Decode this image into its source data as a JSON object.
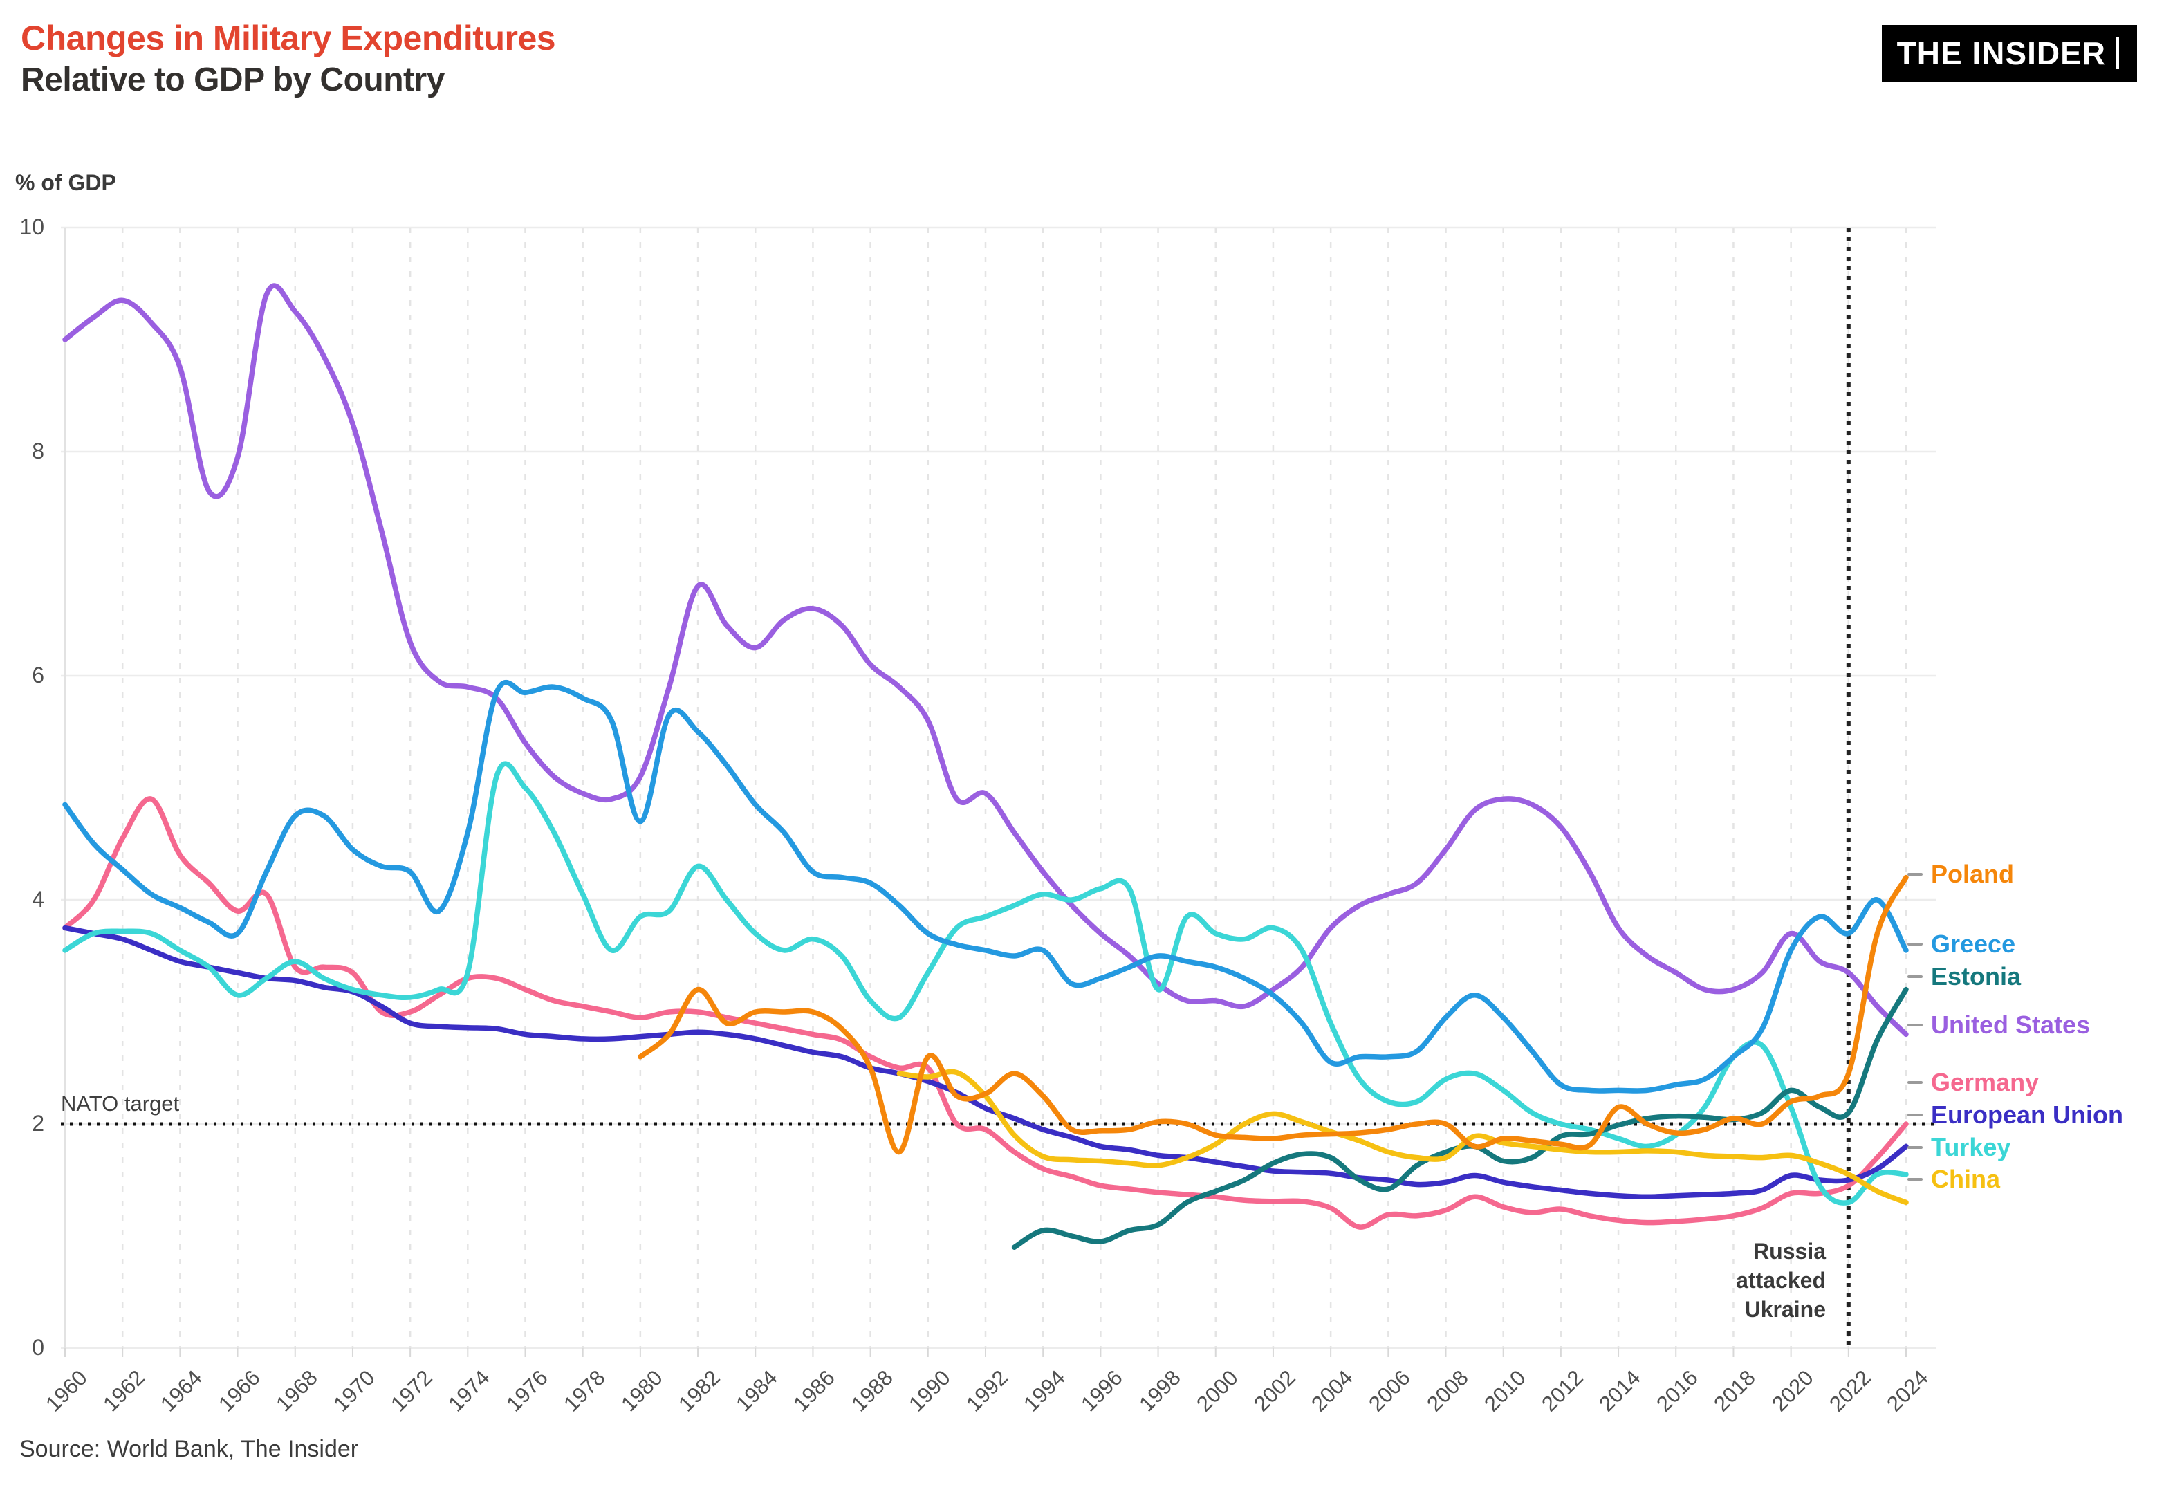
{
  "header": {
    "title": "Changes in Military Expenditures",
    "subtitle": "Relative to GDP by Country",
    "logo": "THE INSIDER"
  },
  "source": "Source: World Bank, The Insider",
  "annotations": {
    "nato": {
      "label": "NATO target",
      "value": 2
    },
    "russia": {
      "line1": "Russia",
      "line2": "attacked",
      "line3": "Ukraine",
      "year": 2022
    }
  },
  "chart_data": {
    "type": "line",
    "title": "Changes in Military Expenditures Relative to GDP by Country",
    "xlabel": "",
    "ylabel": "% of GDP",
    "xlim": [
      1960,
      2024
    ],
    "ylim": [
      0,
      10
    ],
    "grid": true,
    "legend_position": "right",
    "x_ticks": [
      1960,
      1962,
      1964,
      1966,
      1968,
      1970,
      1972,
      1974,
      1976,
      1978,
      1980,
      1982,
      1984,
      1986,
      1988,
      1990,
      1992,
      1994,
      1996,
      1998,
      2000,
      2002,
      2004,
      2006,
      2008,
      2010,
      2012,
      2014,
      2016,
      2018,
      2020,
      2022,
      2024
    ],
    "y_ticks": [
      0,
      2,
      4,
      6,
      8,
      10
    ],
    "legend_order": [
      "Poland",
      "Greece",
      "Estonia",
      "United States",
      "Germany",
      "European Union",
      "Turkey",
      "China"
    ],
    "series": [
      {
        "name": "United States",
        "color": "#9a5fe0",
        "start_year": 1960,
        "values": [
          9.0,
          9.2,
          9.35,
          9.15,
          8.75,
          7.65,
          7.95,
          9.4,
          9.25,
          8.85,
          8.25,
          7.3,
          6.3,
          5.95,
          5.9,
          5.8,
          5.4,
          5.1,
          4.95,
          4.9,
          5.1,
          5.9,
          6.8,
          6.45,
          6.25,
          6.5,
          6.6,
          6.45,
          6.1,
          5.9,
          5.6,
          4.9,
          4.95,
          4.6,
          4.25,
          3.95,
          3.7,
          3.5,
          3.25,
          3.1,
          3.1,
          3.05,
          3.2,
          3.4,
          3.75,
          3.95,
          4.05,
          4.15,
          4.45,
          4.8,
          4.9,
          4.85,
          4.65,
          4.25,
          3.75,
          3.5,
          3.35,
          3.2,
          3.2,
          3.35,
          3.7,
          3.45,
          3.35,
          3.05,
          2.8
        ]
      },
      {
        "name": "Germany",
        "color": "#f5688f",
        "start_year": 1960,
        "values": [
          3.75,
          4.0,
          4.55,
          4.9,
          4.4,
          4.15,
          3.9,
          4.05,
          3.4,
          3.4,
          3.35,
          3.0,
          3.0,
          3.15,
          3.3,
          3.3,
          3.2,
          3.1,
          3.05,
          3.0,
          2.95,
          3.0,
          3.0,
          2.95,
          2.9,
          2.85,
          2.8,
          2.75,
          2.6,
          2.5,
          2.5,
          2.0,
          1.95,
          1.75,
          1.6,
          1.53,
          1.45,
          1.42,
          1.39,
          1.37,
          1.35,
          1.32,
          1.31,
          1.31,
          1.25,
          1.08,
          1.19,
          1.18,
          1.23,
          1.35,
          1.26,
          1.21,
          1.24,
          1.18,
          1.14,
          1.12,
          1.13,
          1.15,
          1.18,
          1.25,
          1.38,
          1.38,
          1.45,
          1.7,
          2.0
        ]
      },
      {
        "name": "European Union",
        "color": "#3a2ec4",
        "start_year": 1960,
        "values": [
          3.75,
          3.7,
          3.65,
          3.55,
          3.45,
          3.4,
          3.35,
          3.3,
          3.28,
          3.22,
          3.18,
          3.05,
          2.9,
          2.87,
          2.86,
          2.85,
          2.8,
          2.78,
          2.76,
          2.76,
          2.78,
          2.8,
          2.82,
          2.8,
          2.76,
          2.7,
          2.64,
          2.6,
          2.5,
          2.45,
          2.38,
          2.28,
          2.14,
          2.05,
          1.95,
          1.88,
          1.8,
          1.77,
          1.72,
          1.7,
          1.66,
          1.62,
          1.58,
          1.57,
          1.56,
          1.52,
          1.5,
          1.46,
          1.48,
          1.54,
          1.48,
          1.44,
          1.41,
          1.38,
          1.36,
          1.35,
          1.36,
          1.37,
          1.38,
          1.41,
          1.54,
          1.5,
          1.5,
          1.6,
          1.8
        ]
      },
      {
        "name": "Turkey",
        "color": "#3bd6d6",
        "start_year": 1960,
        "values": [
          3.55,
          3.7,
          3.72,
          3.7,
          3.55,
          3.4,
          3.15,
          3.3,
          3.45,
          3.3,
          3.2,
          3.15,
          3.13,
          3.2,
          3.35,
          5.1,
          5.0,
          4.6,
          4.05,
          3.55,
          3.85,
          3.9,
          4.3,
          4.0,
          3.7,
          3.55,
          3.65,
          3.5,
          3.1,
          2.95,
          3.35,
          3.75,
          3.85,
          3.95,
          4.05,
          4.0,
          4.1,
          4.1,
          3.2,
          3.85,
          3.7,
          3.65,
          3.75,
          3.55,
          2.9,
          2.4,
          2.2,
          2.2,
          2.4,
          2.45,
          2.3,
          2.1,
          2.0,
          1.95,
          1.87,
          1.8,
          1.9,
          2.15,
          2.6,
          2.7,
          2.15,
          1.45,
          1.3,
          1.55,
          1.55
        ]
      },
      {
        "name": "Greece",
        "color": "#2499e0",
        "start_year": 1960,
        "values": [
          4.85,
          4.5,
          4.27,
          4.05,
          3.93,
          3.8,
          3.7,
          4.25,
          4.75,
          4.75,
          4.45,
          4.3,
          4.25,
          3.9,
          4.6,
          5.85,
          5.85,
          5.9,
          5.8,
          5.6,
          4.7,
          5.65,
          5.5,
          5.2,
          4.85,
          4.6,
          4.25,
          4.2,
          4.15,
          3.95,
          3.7,
          3.6,
          3.55,
          3.5,
          3.55,
          3.25,
          3.3,
          3.4,
          3.5,
          3.45,
          3.4,
          3.3,
          3.15,
          2.9,
          2.55,
          2.6,
          2.6,
          2.65,
          2.95,
          3.15,
          2.95,
          2.65,
          2.35,
          2.3,
          2.3,
          2.3,
          2.35,
          2.4,
          2.6,
          2.85,
          3.55,
          3.85,
          3.7,
          4.0,
          3.55
        ]
      },
      {
        "name": "Estonia",
        "color": "#15787d",
        "start_year": 1993,
        "values": [
          0.9,
          1.05,
          1.0,
          0.95,
          1.05,
          1.1,
          1.3,
          1.4,
          1.5,
          1.65,
          1.73,
          1.7,
          1.5,
          1.42,
          1.63,
          1.75,
          1.8,
          1.67,
          1.7,
          1.89,
          1.91,
          1.99,
          2.05,
          2.07,
          2.06,
          2.04,
          2.1,
          2.3,
          2.15,
          2.1,
          2.75,
          3.2
        ]
      },
      {
        "name": "China",
        "color": "#f6c012",
        "start_year": 1989,
        "values": [
          2.45,
          2.42,
          2.46,
          2.25,
          1.9,
          1.71,
          1.68,
          1.67,
          1.65,
          1.63,
          1.7,
          1.82,
          2.0,
          2.09,
          2.02,
          1.93,
          1.85,
          1.75,
          1.7,
          1.7,
          1.89,
          1.83,
          1.8,
          1.77,
          1.75,
          1.75,
          1.76,
          1.75,
          1.72,
          1.71,
          1.7,
          1.72,
          1.65,
          1.55,
          1.4,
          1.3
        ]
      },
      {
        "name": "Poland",
        "color": "#f5860a",
        "start_year": 1980,
        "values": [
          2.6,
          2.8,
          3.2,
          2.9,
          3.0,
          3.0,
          3.0,
          2.85,
          2.5,
          1.75,
          2.6,
          2.25,
          2.27,
          2.45,
          2.25,
          1.95,
          1.94,
          1.95,
          2.02,
          2.0,
          1.9,
          1.88,
          1.87,
          1.9,
          1.91,
          1.92,
          1.95,
          2.0,
          2.0,
          1.8,
          1.87,
          1.85,
          1.82,
          1.81,
          2.15,
          2.0,
          1.92,
          1.95,
          2.05,
          2.0,
          2.2,
          2.25,
          2.45,
          3.7,
          4.2
        ]
      }
    ]
  }
}
